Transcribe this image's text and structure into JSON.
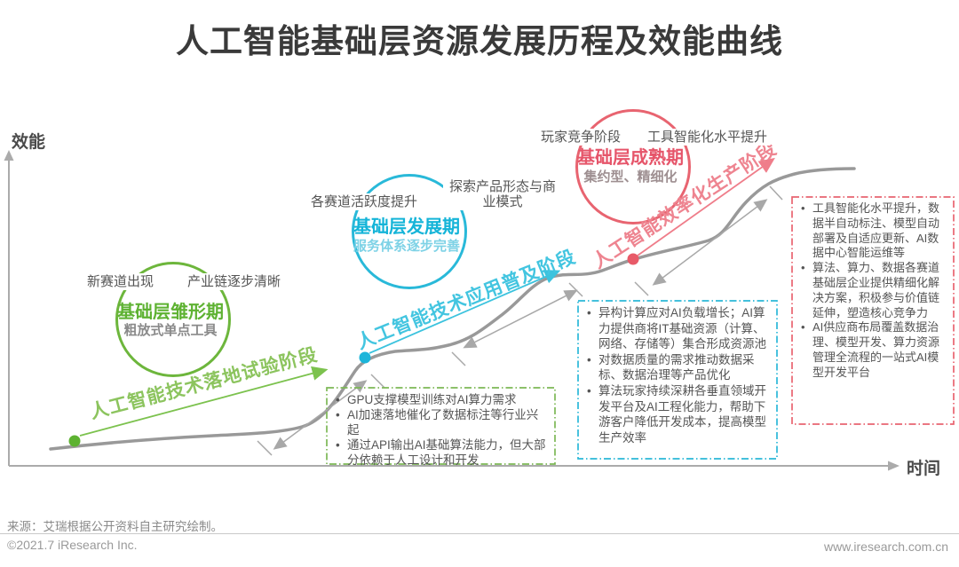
{
  "title": "人工智能基础层资源发展历程及效能曲线",
  "axes": {
    "y_label": "效能",
    "x_label": "时间"
  },
  "colors": {
    "green": "#6db63c",
    "blue": "#29b9d9",
    "red": "#e86470",
    "curve_gray": "#999999",
    "label_gray": "#555555"
  },
  "stages": [
    {
      "circle_title": "基础层雏形期",
      "circle_subtitle": "粗放式单点工具",
      "label_left": "新赛道出现",
      "label_right": "产业链逐步清晰",
      "phase_label": "人工智能技术落地试验阶段",
      "bullets": [
        "GPU支撑模型训练对AI算力需求",
        "AI加速落地催化了数据标注等行业兴起",
        "通过API输出AI基础算法能力，但大部分依赖于人工设计和开发"
      ]
    },
    {
      "circle_title": "基础层发展期",
      "circle_subtitle": "服务体系逐步完善",
      "label_left": "各赛道活跃度提升",
      "label_right": "探索产品形态与商业模式",
      "phase_label": "人工智能技术应用普及阶段",
      "bullets": [
        "异构计算应对AI负载增长；AI算力提供商将IT基础资源（计算、网络、存储等）集合形成资源池",
        "对数据质量的需求推动数据采标、数据治理等产品优化",
        "算法玩家持续深耕各垂直领域开发平台及AI工程化能力，帮助下游客户降低开发成本，提高模型生产效率"
      ]
    },
    {
      "circle_title": "基础层成熟期",
      "circle_subtitle": "集约型、精细化",
      "label_left": "玩家竞争阶段",
      "label_right": "工具智能化水平提升",
      "phase_label": "人工智能效率化生产阶段",
      "bullets": [
        "工具智能化水平提升，数据半自动标注、模型自动部署及自适应更新、AI数据中心智能运维等",
        "算法、算力、数据各赛道基础层企业提供精细化解决方案，积极参与价值链延伸，塑造核心竞争力",
        "AI供应商布局覆盖数据治理、模型开发、算力资源管理全流程的一站式AI模型开发平台"
      ]
    }
  ],
  "footer": {
    "source": "来源：艾瑞根据公开资料自主研究绘制。",
    "copyright": "©2021.7 iResearch Inc.",
    "website": "www.iresearch.com.cn"
  }
}
